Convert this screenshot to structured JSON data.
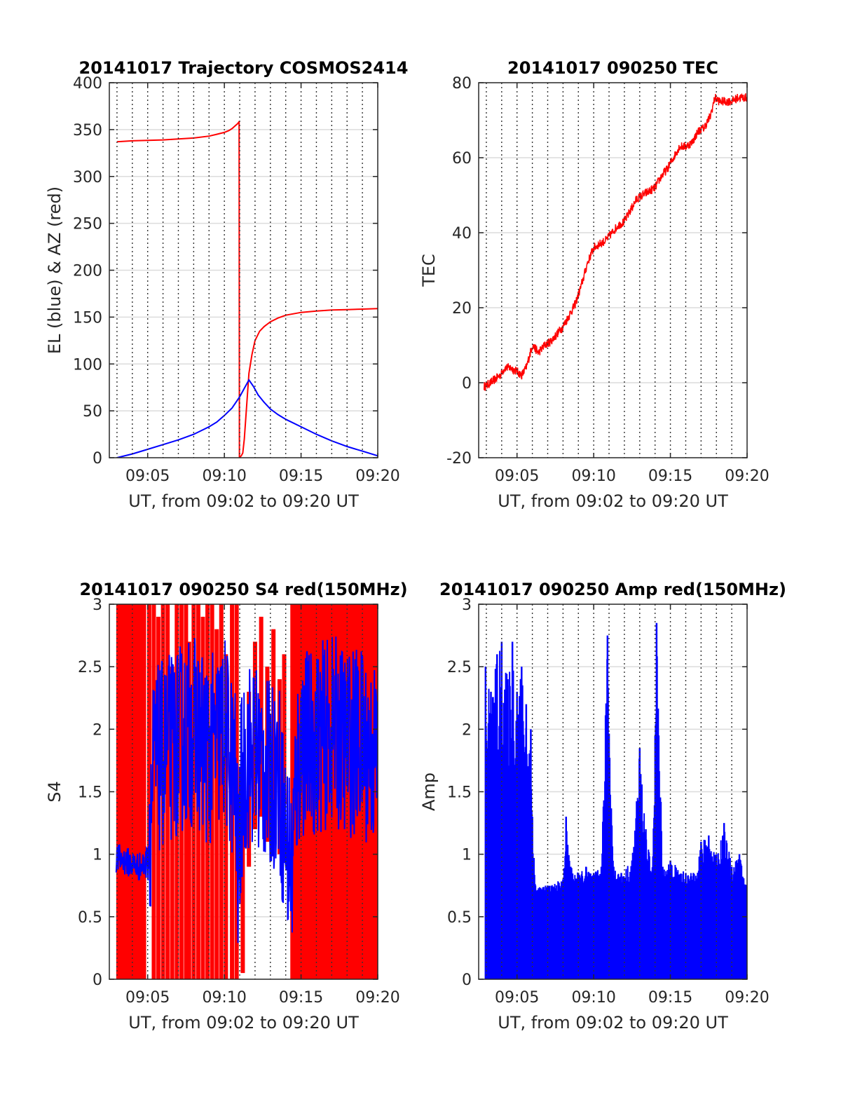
{
  "chart_data": [
    {
      "id": "trajectory",
      "type": "line",
      "title": "20141017 Trajectory COSMOS2414",
      "xlabel": "UT, from 09:02 to 09:20 UT",
      "ylabel": "EL (blue) & AZ (red)",
      "xlim_min": [
        2.5,
        20
      ],
      "ylim": [
        0,
        400
      ],
      "yticks": [
        0,
        50,
        100,
        150,
        200,
        250,
        300,
        350,
        400
      ],
      "ytick_labels": [
        "0",
        "50",
        "100",
        "150",
        "200",
        "250",
        "300",
        "350",
        "400"
      ],
      "xticks": [
        5,
        10,
        15,
        20
      ],
      "xtick_labels": [
        "09:05",
        "09:10",
        "09:15",
        "09:20"
      ],
      "vgrid_min": [
        3,
        4,
        5,
        6,
        7,
        8,
        9,
        10,
        11,
        12,
        13,
        14,
        15,
        16,
        17,
        18,
        19
      ],
      "grid": true,
      "series": [
        {
          "color": "#ff0000",
          "x": [
            3.0,
            4.0,
            5.0,
            6.0,
            7.0,
            8.0,
            9.0,
            9.5,
            10.0,
            10.3,
            10.5,
            10.7,
            10.85,
            10.95,
            10.96,
            10.98,
            11.1,
            11.2,
            11.3,
            11.45,
            11.6,
            11.8,
            12.0,
            12.3,
            12.6,
            13.0,
            13.5,
            14.0,
            15.0,
            16.0,
            17.0,
            18.0,
            19.0,
            20.0
          ],
          "y": [
            337,
            338,
            338.5,
            339,
            340,
            341,
            343,
            345,
            347,
            349,
            351,
            354,
            356,
            358,
            359,
            0,
            2,
            5,
            20,
            55,
            90,
            110,
            125,
            135,
            140,
            145,
            149,
            152,
            155,
            156.5,
            157.5,
            158,
            158.5,
            159
          ]
        },
        {
          "color": "#0000ff",
          "x": [
            3.0,
            4.0,
            5.0,
            6.0,
            7.0,
            8.0,
            9.0,
            9.5,
            10.0,
            10.5,
            11.0,
            11.3,
            11.6,
            11.9,
            12.2,
            12.6,
            13.0,
            13.5,
            14.0,
            15.0,
            16.0,
            17.0,
            18.0,
            19.0,
            20.0
          ],
          "y": [
            0,
            4,
            9,
            14,
            19,
            25,
            33,
            38,
            45,
            53,
            65,
            74,
            83,
            76,
            67,
            59,
            52,
            46,
            41,
            33,
            25,
            18,
            12,
            7,
            2
          ]
        }
      ]
    },
    {
      "id": "tec",
      "type": "line",
      "title": "20141017 090250 TEC",
      "xlabel": "UT, from 09:02 to 09:20 UT",
      "ylabel": "TEC",
      "xlim_min": [
        2.5,
        20
      ],
      "ylim": [
        -20,
        80
      ],
      "yticks": [
        -20,
        0,
        20,
        40,
        60,
        80
      ],
      "ytick_labels": [
        "-20",
        "0",
        "20",
        "40",
        "60",
        "80"
      ],
      "xticks": [
        5,
        10,
        15,
        20
      ],
      "xtick_labels": [
        "09:05",
        "09:10",
        "09:15",
        "09:20"
      ],
      "vgrid_min": [
        3,
        4,
        5,
        6,
        7,
        8,
        9,
        10,
        11,
        12,
        13,
        14,
        15,
        16,
        17,
        18,
        19
      ],
      "grid": true,
      "noise": 1.2,
      "series": [
        {
          "color": "#ff0000",
          "x": [
            2.85,
            3.3,
            3.6,
            3.9,
            4.2,
            4.6,
            5.0,
            5.3,
            5.6,
            6.0,
            6.4,
            6.8,
            7.2,
            7.6,
            8.0,
            8.4,
            8.8,
            9.2,
            9.6,
            10.0,
            10.4,
            10.8,
            11.2,
            11.6,
            12.0,
            12.4,
            12.8,
            13.2,
            13.6,
            14.0,
            14.4,
            14.8,
            15.2,
            15.6,
            16.0,
            16.4,
            16.8,
            17.2,
            17.6,
            17.9,
            18.2,
            18.6,
            19.0,
            19.4,
            20.0
          ],
          "y": [
            -1,
            0,
            1,
            2,
            4,
            4,
            3,
            2,
            4,
            10,
            8,
            10,
            11,
            13,
            15,
            18,
            21,
            26,
            32,
            36,
            37,
            38,
            40,
            42,
            43,
            46,
            49,
            50,
            51,
            52,
            55,
            57,
            60,
            63,
            63,
            64,
            67,
            68,
            71,
            76,
            75,
            75,
            75,
            76,
            76
          ]
        }
      ]
    },
    {
      "id": "s4",
      "type": "line",
      "title": "20141017 090250 S4 red(150MHz)",
      "xlabel": "UT, from 09:02 to 09:20 UT",
      "ylabel": "S4",
      "xlim_min": [
        2.5,
        20
      ],
      "ylim": [
        0,
        3
      ],
      "yticks": [
        0,
        0.5,
        1,
        1.5,
        2,
        2.5,
        3
      ],
      "ytick_labels": [
        "0",
        "0.5",
        "1",
        "1.5",
        "2",
        "2.5",
        "3"
      ],
      "xticks": [
        5,
        10,
        15,
        20
      ],
      "xtick_labels": [
        "09:05",
        "09:10",
        "09:15",
        "09:20"
      ],
      "vgrid_min": [
        3,
        4,
        5,
        6,
        7,
        8,
        9,
        10,
        11,
        12,
        13,
        14,
        15,
        16,
        17,
        18,
        19
      ],
      "grid": true,
      "red_fill_ranges": [
        [
          2.95,
          4.9
        ],
        [
          14.3,
          20.0
        ]
      ],
      "red_bars": [
        [
          5.1,
          0.9,
          3
        ],
        [
          5.4,
          0,
          3
        ],
        [
          5.7,
          0,
          2.9
        ],
        [
          6.0,
          0,
          3
        ],
        [
          6.3,
          0,
          3
        ],
        [
          6.6,
          0,
          2.5
        ],
        [
          6.9,
          0,
          3
        ],
        [
          7.2,
          0,
          3
        ],
        [
          7.5,
          0,
          3
        ],
        [
          7.7,
          0,
          2.7
        ],
        [
          8.0,
          0,
          3
        ],
        [
          8.3,
          0,
          3
        ],
        [
          8.6,
          0,
          2.9
        ],
        [
          8.9,
          0,
          3
        ],
        [
          9.2,
          0,
          3
        ],
        [
          9.5,
          0,
          2.8
        ],
        [
          9.8,
          0,
          3
        ],
        [
          10.1,
          0,
          2.6
        ],
        [
          10.5,
          0,
          3
        ],
        [
          10.8,
          0,
          3
        ],
        [
          11.2,
          0.05,
          1.3
        ],
        [
          11.6,
          0.9,
          2.3
        ],
        [
          12.0,
          1.2,
          2.7
        ],
        [
          12.4,
          1.3,
          2.9
        ],
        [
          12.8,
          1.1,
          2.5
        ],
        [
          13.2,
          1.3,
          2.8
        ],
        [
          13.6,
          1.0,
          2.4
        ],
        [
          13.9,
          1.4,
          2.6
        ]
      ],
      "series": [
        {
          "color": "#0000ff",
          "x": [
            2.95,
            3.5,
            4.0,
            4.5,
            4.9,
            5.1,
            5.4,
            6.0,
            7.0,
            8.0,
            9.0,
            10.0,
            10.7,
            10.9,
            11.1,
            11.5,
            12.0,
            13.0,
            13.5,
            14.0,
            14.4,
            14.7,
            15.0,
            16.0,
            17.0,
            18.0,
            19.0,
            19.6,
            20.0
          ],
          "y": [
            0.97,
            0.95,
            0.92,
            0.9,
            0.92,
            1.2,
            1.7,
            1.8,
            1.9,
            2.0,
            1.8,
            2.0,
            1.6,
            0.8,
            1.5,
            1.8,
            1.8,
            1.6,
            1.7,
            1.1,
            0.9,
            1.6,
            1.9,
            1.9,
            2.0,
            1.9,
            1.9,
            1.8,
            1.8
          ],
          "band": 0.35
        }
      ]
    },
    {
      "id": "amp",
      "type": "line",
      "title": "20141017 090250 Amp red(150MHz)",
      "xlabel": "UT, from 09:02 to 09:20 UT",
      "ylabel": "Amp",
      "xlim_min": [
        2.5,
        20
      ],
      "ylim": [
        0,
        3
      ],
      "yticks": [
        0,
        0.5,
        1,
        1.5,
        2,
        2.5,
        3
      ],
      "ytick_labels": [
        "0",
        "0.5",
        "1",
        "1.5",
        "2",
        "2.5",
        "3"
      ],
      "xticks": [
        5,
        10,
        15,
        20
      ],
      "xtick_labels": [
        "09:05",
        "09:10",
        "09:15",
        "09:20"
      ],
      "vgrid_min": [
        3,
        4,
        5,
        6,
        7,
        8,
        9,
        10,
        11,
        12,
        13,
        14,
        15,
        16,
        17,
        18,
        19
      ],
      "grid": true,
      "series": [
        {
          "color": "#0000ff",
          "x": [
            2.95,
            3.3,
            3.7,
            4.0,
            4.4,
            4.7,
            5.0,
            5.3,
            5.6,
            5.9,
            6.0,
            6.2,
            7.0,
            8.0,
            8.2,
            8.5,
            9.0,
            9.5,
            10.0,
            10.5,
            10.9,
            11.3,
            11.8,
            12.5,
            13.0,
            13.4,
            13.8,
            14.1,
            14.5,
            15.0,
            16.0,
            16.5,
            17.0,
            17.5,
            18.0,
            18.5,
            19.0,
            19.5,
            20.0
          ],
          "y": [
            2.5,
            2.3,
            2.6,
            2.7,
            2.4,
            2.7,
            2.3,
            2.5,
            2.2,
            2.0,
            1.3,
            0.75,
            0.75,
            0.8,
            1.3,
            0.9,
            0.85,
            0.9,
            0.85,
            0.9,
            2.75,
            0.9,
            0.85,
            0.95,
            1.85,
            1.2,
            0.85,
            2.85,
            0.9,
            0.95,
            0.85,
            0.85,
            1.1,
            1.15,
            1.0,
            1.25,
            0.9,
            1.0,
            0.75
          ],
          "floor": 0.6
        }
      ]
    }
  ]
}
